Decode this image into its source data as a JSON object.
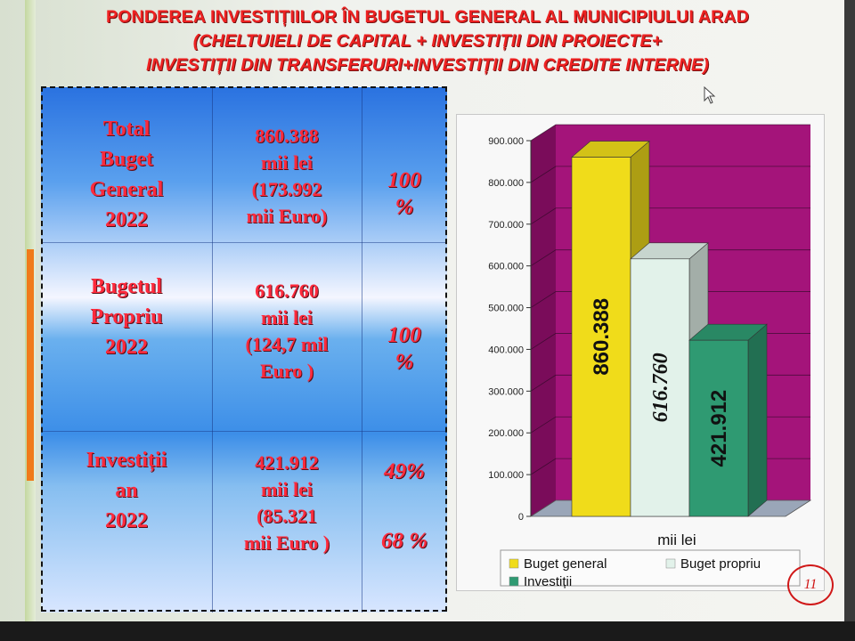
{
  "title": {
    "line1": "PONDEREA INVESTIȚIILOR ÎN BUGETUL GENERAL AL MUNICIPIULUI ARAD",
    "line2": "(CHELTUIELI DE CAPITAL + INVESTIȚII DIN PROIECTE+",
    "line3": "INVESTIȚII DIN TRANSFERURI+INVESTIȚII DIN CREDITE INTERNE)"
  },
  "table": {
    "rows": [
      {
        "label": [
          "Total",
          "Buget",
          "General",
          "2022"
        ],
        "value": [
          "860.388",
          "mii lei",
          "(173.992",
          "mii Euro)"
        ],
        "percent": [
          "100",
          "%"
        ]
      },
      {
        "label": [
          "Bugetul",
          "Propriu",
          "2022"
        ],
        "value": [
          "616.760",
          "mii lei",
          "(124,7 mil",
          "Euro )"
        ],
        "percent": [
          "100",
          "%"
        ]
      },
      {
        "label": [
          "Investiții",
          "an",
          "2022"
        ],
        "value": [
          "421.912",
          "mii lei",
          "(85.321",
          "mii Euro )"
        ],
        "percent": [
          "49%",
          "68 %"
        ]
      }
    ]
  },
  "chart_data": {
    "type": "bar",
    "categories": [
      "mii lei"
    ],
    "series": [
      {
        "name": "Buget general",
        "values": [
          860.388
        ],
        "color": "#f0dc1a",
        "label": "860.388"
      },
      {
        "name": "Buget propriu",
        "values": [
          616.76
        ],
        "color": "#e2f2ea",
        "label": "616.760"
      },
      {
        "name": "Investiții",
        "values": [
          421.912
        ],
        "color": "#2f9a72",
        "label": "421.912"
      }
    ],
    "xlabel": "mii lei",
    "ylabel": "",
    "ylim": [
      0,
      900
    ],
    "yticks": [
      {
        "value": 0,
        "label": "0"
      },
      {
        "value": 100,
        "label": "100.000"
      },
      {
        "value": 200,
        "label": "200.000"
      },
      {
        "value": 300,
        "label": "300.000"
      },
      {
        "value": 400,
        "label": "400.000"
      },
      {
        "value": 500,
        "label": "500.000"
      },
      {
        "value": 600,
        "label": "600.000"
      },
      {
        "value": 700,
        "label": "700.000"
      },
      {
        "value": 800,
        "label": "800.000"
      },
      {
        "value": 900,
        "label": "900.000"
      }
    ],
    "grid": true,
    "legend": "bottom",
    "wall_color": "#a4147a",
    "style": "3d"
  },
  "page_number": "11"
}
